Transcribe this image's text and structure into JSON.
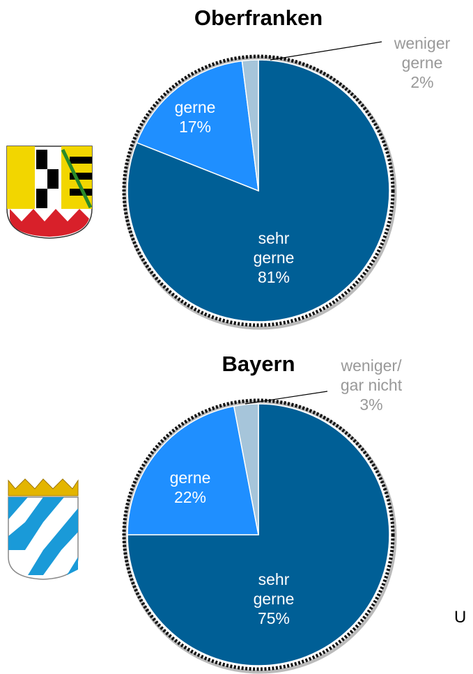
{
  "chart_data": [
    {
      "type": "pie",
      "title": "Oberfranken",
      "categories": [
        "sehr gerne",
        "gerne",
        "weniger gerne"
      ],
      "values": [
        81,
        17,
        2
      ],
      "value_labels": [
        "81%",
        "17%",
        "2%"
      ],
      "colors": [
        "#005f96",
        "#1f8fff",
        "#a6c5da"
      ]
    },
    {
      "type": "pie",
      "title": "Bayern",
      "categories": [
        "sehr gerne",
        "gerne",
        "weniger/ gar nicht"
      ],
      "values": [
        75,
        22,
        3
      ],
      "value_labels": [
        "75%",
        "22%",
        "3%"
      ],
      "colors": [
        "#005f96",
        "#1f8fff",
        "#a6c5da"
      ]
    }
  ],
  "footer_fragment": "U"
}
